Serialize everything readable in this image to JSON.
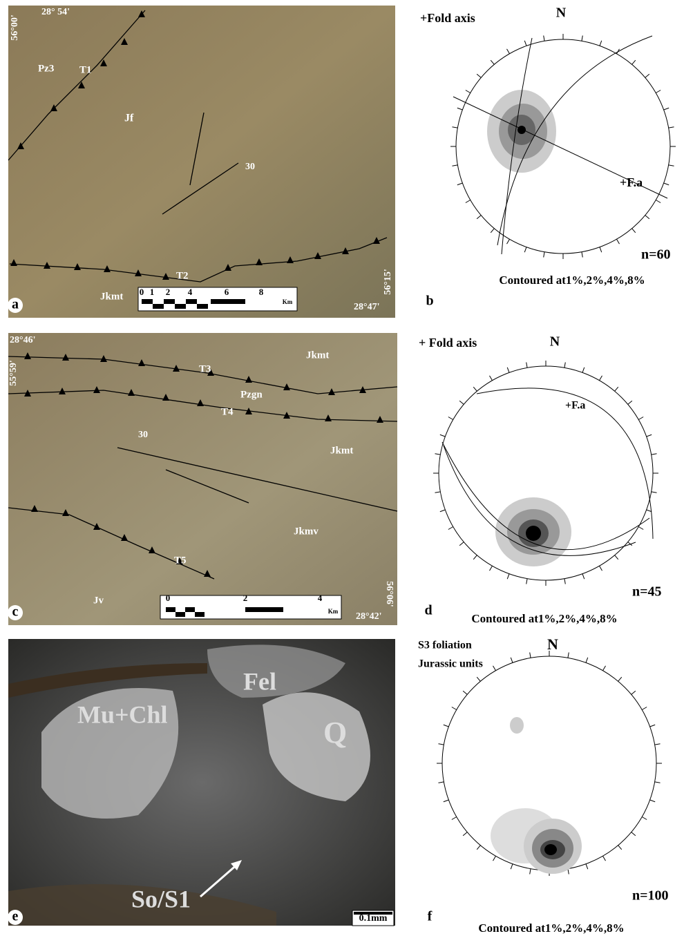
{
  "panels": [
    {
      "letter": "a",
      "texts": [
        "28° 54'",
        "56°00'",
        "Pz3",
        "T1",
        "Jf",
        "30",
        "T2",
        "Jkmt",
        "28°47'",
        "56°15'",
        "0",
        "1",
        "2",
        "4",
        "6",
        "8",
        "Km"
      ]
    },
    {
      "letter": "b",
      "texts": [
        "+Fold axis",
        "N",
        "+F.a",
        "n=60",
        "Contoured at1%,2%,4%,8%"
      ]
    },
    {
      "letter": "c",
      "texts": [
        "28°46'",
        "55°59'",
        "T3",
        "Jkmt",
        "Pzgn",
        "T4",
        "30",
        "Jkmt",
        "Jkmv",
        "T5",
        "Jv",
        "0",
        "2",
        "4",
        "Km",
        "56°06'",
        "28°42'"
      ]
    },
    {
      "letter": "d",
      "texts": [
        "+ Fold axis",
        "N",
        "+F.a",
        "n=45",
        "Contoured at1%,2%,4%,8%"
      ]
    },
    {
      "letter": "e",
      "texts": [
        "Fel",
        "Mu+Chl",
        "Q",
        "So/S1",
        "0.1mm"
      ]
    },
    {
      "letter": "f",
      "texts": [
        "S3 foliation",
        "Jurassic units",
        "N",
        "n=100",
        "Contoured at1%,2%,4%,8%"
      ]
    }
  ]
}
